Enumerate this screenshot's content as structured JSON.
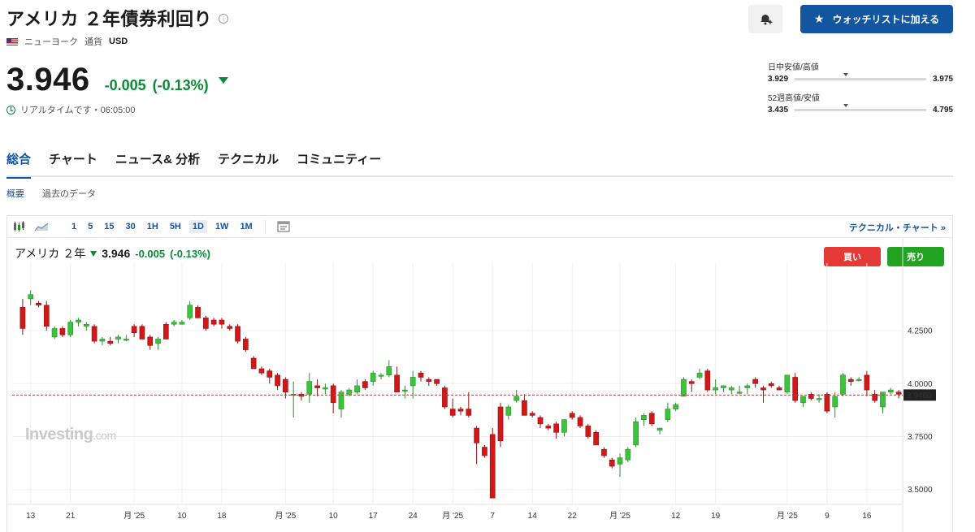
{
  "header": {
    "title": "アメリカ ２年債券利回り",
    "exchange": "ニューヨーク",
    "currency_label": "通貨",
    "currency": "USD",
    "price": "3.946",
    "change": "-0.005",
    "change_pct": "(-0.13%)",
    "realtime": "リアルタイムです・06:05:00",
    "watchlist_button": "ウォッチリストに加える",
    "colors": {
      "accent": "#1256a0",
      "down": "#0a8a36",
      "buy": "#e53935",
      "sell": "#22a322"
    }
  },
  "ranges": [
    {
      "label": "日中安値/高値",
      "low": "3.929",
      "high": "3.975",
      "position": 0.37
    },
    {
      "label": "52週高値/安値",
      "low": "3.435",
      "high": "4.795",
      "position": 0.37
    }
  ],
  "tabs": [
    "総合",
    "チャート",
    "ニュース& 分析",
    "テクニカル",
    "コミュニティー"
  ],
  "subtabs": [
    "概要",
    "過去のデータ"
  ],
  "toolbar": {
    "intervals": [
      "1",
      "5",
      "15",
      "30",
      "1H",
      "5H",
      "1D",
      "1W",
      "1M"
    ],
    "selected": "1D",
    "technical_link": "テクニカル・チャート »"
  },
  "chart_legend": {
    "name": "アメリカ ２年",
    "price": "3.946",
    "change": "-0.005",
    "change_pct": "(-0.13%)"
  },
  "buttons": {
    "buy": "買い",
    "sell": "売り"
  },
  "watermark": {
    "main": "Investing",
    "suffix": ".com"
  },
  "chart_data": {
    "type": "candlestick",
    "y_ticks": [
      "4.2500",
      "4.0000",
      "3.7500",
      "3.5000"
    ],
    "ylim": [
      3.43,
      4.53
    ],
    "current_value": "3.9460",
    "current_line": 3.946,
    "x_labels": [
      "13",
      "21",
      "月 '25",
      "10",
      "18",
      "月 '25",
      "10",
      "17",
      "24",
      "月 '25",
      "7",
      "14",
      "22",
      "月 '25",
      "12",
      "19",
      "月 '25",
      "9",
      "16"
    ],
    "x_label_index": [
      1,
      6,
      14,
      20,
      25,
      33,
      39,
      44,
      49,
      54,
      59,
      64,
      69,
      75,
      82,
      87,
      96,
      101,
      106
    ],
    "candles": [
      [
        4.36,
        4.4,
        4.23,
        4.26
      ],
      [
        4.4,
        4.44,
        4.37,
        4.42
      ],
      [
        4.38,
        4.39,
        4.36,
        4.37
      ],
      [
        4.37,
        4.39,
        4.25,
        4.27
      ],
      [
        4.22,
        4.27,
        4.21,
        4.26
      ],
      [
        4.26,
        4.27,
        4.22,
        4.23
      ],
      [
        4.23,
        4.3,
        4.22,
        4.29
      ],
      [
        4.29,
        4.31,
        4.27,
        4.3
      ],
      [
        4.27,
        4.29,
        4.25,
        4.28
      ],
      [
        4.27,
        4.28,
        4.19,
        4.2
      ],
      [
        4.2,
        4.22,
        4.18,
        4.21
      ],
      [
        4.2,
        4.22,
        4.18,
        4.19
      ],
      [
        4.21,
        4.23,
        4.19,
        4.22
      ],
      [
        4.21,
        4.23,
        4.2,
        4.21
      ],
      [
        4.27,
        4.28,
        4.22,
        4.24
      ],
      [
        4.27,
        4.28,
        4.21,
        4.21
      ],
      [
        4.22,
        4.23,
        4.16,
        4.18
      ],
      [
        4.19,
        4.22,
        4.16,
        4.21
      ],
      [
        4.28,
        4.29,
        4.21,
        4.21
      ],
      [
        4.28,
        4.3,
        4.27,
        4.29
      ],
      [
        4.28,
        4.3,
        4.28,
        4.29
      ],
      [
        4.31,
        4.39,
        4.3,
        4.37
      ],
      [
        4.36,
        4.37,
        4.31,
        4.31
      ],
      [
        4.31,
        4.32,
        4.25,
        4.26
      ],
      [
        4.3,
        4.31,
        4.27,
        4.28
      ],
      [
        4.3,
        4.31,
        4.26,
        4.28
      ],
      [
        4.27,
        4.28,
        4.25,
        4.26
      ],
      [
        4.27,
        4.28,
        4.19,
        4.2
      ],
      [
        4.21,
        4.22,
        4.15,
        4.16
      ],
      [
        4.12,
        4.13,
        4.07,
        4.07
      ],
      [
        4.07,
        4.08,
        4.04,
        4.05
      ],
      [
        4.06,
        4.07,
        4.0,
        4.03
      ],
      [
        4.04,
        4.05,
        3.97,
        3.99
      ],
      [
        4.02,
        4.03,
        3.93,
        3.96
      ],
      [
        3.95,
        4.01,
        3.84,
        3.95
      ],
      [
        3.95,
        3.96,
        3.92,
        3.94
      ],
      [
        3.95,
        4.05,
        3.91,
        4.01
      ],
      [
        3.99,
        4.02,
        3.94,
        3.98
      ],
      [
        3.98,
        4.0,
        3.95,
        3.98
      ],
      [
        3.99,
        4.0,
        3.86,
        3.91
      ],
      [
        3.88,
        3.97,
        3.84,
        3.96
      ],
      [
        3.95,
        3.98,
        3.94,
        3.97
      ],
      [
        3.96,
        4.02,
        3.95,
        3.99
      ],
      [
        4.01,
        4.02,
        3.97,
        3.98
      ],
      [
        4.01,
        4.06,
        3.99,
        4.05
      ],
      [
        4.04,
        4.05,
        4.02,
        4.04
      ],
      [
        4.04,
        4.11,
        4.03,
        4.08
      ],
      [
        4.04,
        4.08,
        3.96,
        3.96
      ],
      [
        3.97,
        3.99,
        3.93,
        3.97
      ],
      [
        3.99,
        4.06,
        3.93,
        4.03
      ],
      [
        4.05,
        4.06,
        4.01,
        4.03
      ],
      [
        4.02,
        4.03,
        3.99,
        4.01
      ],
      [
        4.02,
        4.02,
        3.99,
        4.0
      ],
      [
        3.98,
        3.99,
        3.88,
        3.89
      ],
      [
        3.88,
        3.93,
        3.84,
        3.85
      ],
      [
        3.88,
        3.89,
        3.85,
        3.87
      ],
      [
        3.88,
        3.96,
        3.84,
        3.85
      ],
      [
        3.79,
        3.8,
        3.62,
        3.72
      ],
      [
        3.7,
        3.71,
        3.65,
        3.66
      ],
      [
        3.76,
        3.79,
        3.46,
        3.46
      ],
      [
        3.89,
        3.91,
        3.7,
        3.73
      ],
      [
        3.85,
        3.9,
        3.83,
        3.89
      ],
      [
        3.92,
        3.97,
        3.91,
        3.94
      ],
      [
        3.92,
        3.95,
        3.86,
        3.85
      ],
      [
        3.86,
        3.87,
        3.84,
        3.85
      ],
      [
        3.84,
        3.85,
        3.79,
        3.81
      ],
      [
        3.8,
        3.81,
        3.78,
        3.79
      ],
      [
        3.81,
        3.82,
        3.74,
        3.77
      ],
      [
        3.77,
        3.83,
        3.75,
        3.83
      ],
      [
        3.86,
        3.87,
        3.83,
        3.84
      ],
      [
        3.84,
        3.85,
        3.79,
        3.8
      ],
      [
        3.8,
        3.81,
        3.74,
        3.75
      ],
      [
        3.77,
        3.78,
        3.71,
        3.71
      ],
      [
        3.69,
        3.7,
        3.65,
        3.66
      ],
      [
        3.64,
        3.65,
        3.6,
        3.61
      ],
      [
        3.62,
        3.67,
        3.56,
        3.65
      ],
      [
        3.64,
        3.7,
        3.63,
        3.69
      ],
      [
        3.71,
        3.84,
        3.7,
        3.82
      ],
      [
        3.83,
        3.86,
        3.8,
        3.85
      ],
      [
        3.86,
        3.87,
        3.8,
        3.81
      ],
      [
        3.78,
        3.79,
        3.76,
        3.79
      ],
      [
        3.83,
        3.91,
        3.82,
        3.88
      ],
      [
        3.88,
        3.91,
        3.87,
        3.9
      ],
      [
        3.94,
        4.03,
        3.94,
        4.02
      ],
      [
        4.01,
        4.02,
        3.96,
        4.0
      ],
      [
        4.03,
        4.07,
        4.02,
        4.05
      ],
      [
        4.06,
        4.07,
        3.96,
        3.97
      ],
      [
        3.97,
        4.02,
        3.95,
        3.98
      ],
      [
        3.98,
        3.99,
        3.96,
        3.99
      ],
      [
        3.97,
        3.99,
        3.95,
        3.98
      ],
      [
        3.96,
        3.99,
        3.95,
        3.96
      ],
      [
        3.98,
        4.0,
        3.95,
        3.99
      ],
      [
        4.02,
        4.03,
        3.98,
        4.0
      ],
      [
        3.98,
        3.99,
        3.91,
        3.97
      ],
      [
        4.0,
        4.01,
        3.98,
        3.99
      ],
      [
        3.98,
        3.99,
        3.97,
        3.97
      ],
      [
        3.96,
        4.03,
        3.95,
        4.04
      ],
      [
        4.03,
        4.05,
        3.91,
        3.92
      ],
      [
        3.91,
        3.94,
        3.89,
        3.94
      ],
      [
        3.95,
        3.96,
        3.92,
        3.93
      ],
      [
        3.93,
        3.95,
        3.91,
        3.93
      ],
      [
        3.95,
        3.96,
        3.86,
        3.87
      ],
      [
        3.89,
        3.96,
        3.84,
        3.94
      ],
      [
        3.95,
        4.05,
        3.94,
        4.04
      ],
      [
        4.02,
        4.03,
        3.99,
        4.01
      ],
      [
        4.02,
        4.03,
        4.01,
        4.02
      ],
      [
        4.04,
        4.06,
        3.94,
        3.97
      ],
      [
        3.95,
        3.97,
        3.91,
        3.92
      ],
      [
        3.89,
        3.95,
        3.86,
        3.96
      ],
      [
        3.96,
        3.98,
        3.95,
        3.97
      ],
      [
        3.96,
        3.97,
        3.93,
        3.95
      ]
    ]
  }
}
